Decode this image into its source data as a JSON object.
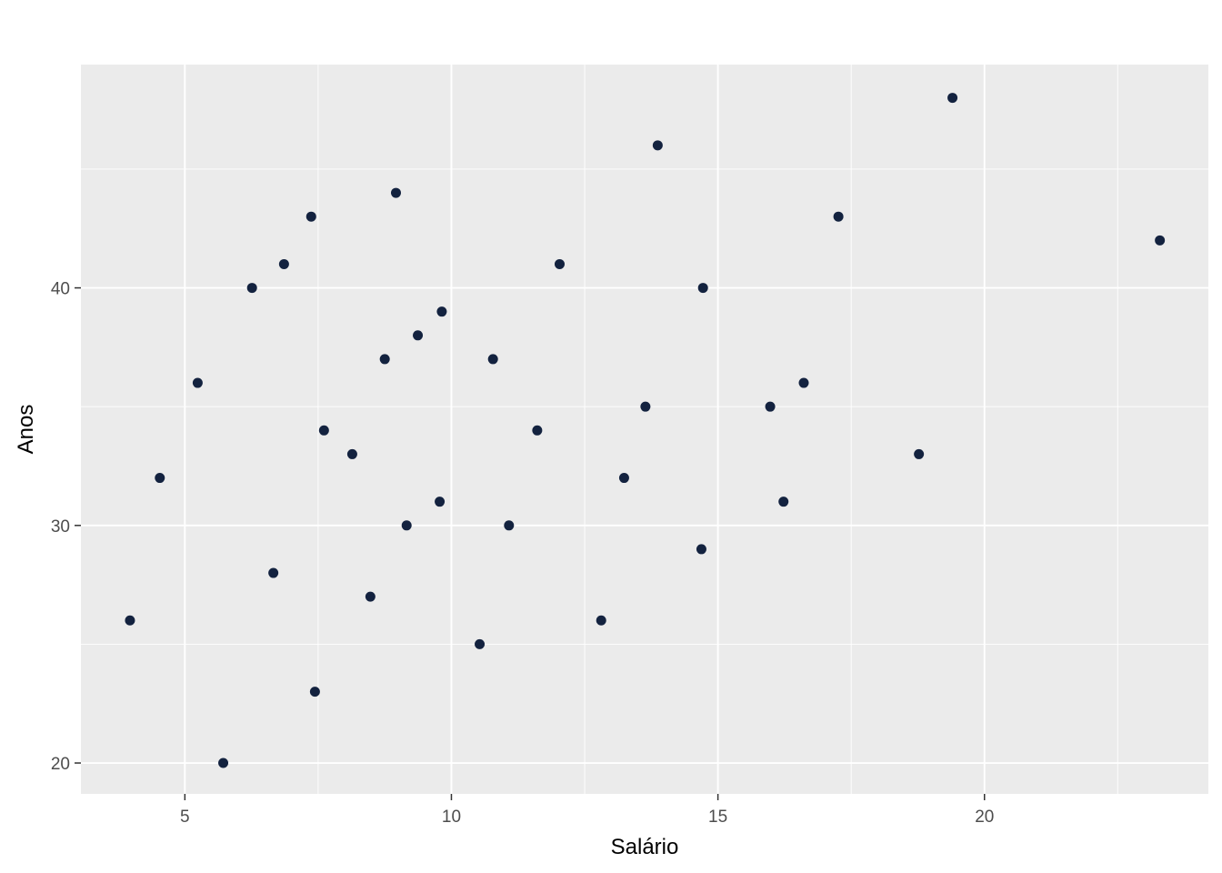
{
  "chart_data": {
    "type": "scatter",
    "title": "",
    "xlabel": "Salário",
    "ylabel": "Anos",
    "xlim": [
      3.05,
      24.2
    ],
    "ylim": [
      18.7,
      49.4
    ],
    "x_ticks": [
      5,
      10,
      15,
      20
    ],
    "y_ticks": [
      20,
      30,
      40
    ],
    "grid": true,
    "legend": "none",
    "colors": {
      "panel": "#ebebeb",
      "grid": "#ffffff",
      "point": "#13223f"
    },
    "points": [
      {
        "x": 3.97,
        "y": 26
      },
      {
        "x": 4.53,
        "y": 32
      },
      {
        "x": 5.24,
        "y": 36
      },
      {
        "x": 5.72,
        "y": 20
      },
      {
        "x": 6.26,
        "y": 40
      },
      {
        "x": 6.66,
        "y": 28
      },
      {
        "x": 6.86,
        "y": 41
      },
      {
        "x": 7.37,
        "y": 43
      },
      {
        "x": 7.44,
        "y": 23
      },
      {
        "x": 7.61,
        "y": 34
      },
      {
        "x": 8.14,
        "y": 33
      },
      {
        "x": 8.48,
        "y": 27
      },
      {
        "x": 8.75,
        "y": 37
      },
      {
        "x": 8.96,
        "y": 44
      },
      {
        "x": 9.16,
        "y": 30
      },
      {
        "x": 9.37,
        "y": 38
      },
      {
        "x": 9.78,
        "y": 31
      },
      {
        "x": 9.82,
        "y": 39
      },
      {
        "x": 10.53,
        "y": 25
      },
      {
        "x": 10.78,
        "y": 37
      },
      {
        "x": 11.08,
        "y": 30
      },
      {
        "x": 11.61,
        "y": 34
      },
      {
        "x": 12.03,
        "y": 41
      },
      {
        "x": 12.81,
        "y": 26
      },
      {
        "x": 13.24,
        "y": 32
      },
      {
        "x": 13.64,
        "y": 35
      },
      {
        "x": 13.87,
        "y": 46
      },
      {
        "x": 14.69,
        "y": 29
      },
      {
        "x": 14.72,
        "y": 40
      },
      {
        "x": 15.98,
        "y": 35
      },
      {
        "x": 16.23,
        "y": 31
      },
      {
        "x": 16.61,
        "y": 36
      },
      {
        "x": 17.26,
        "y": 43
      },
      {
        "x": 18.77,
        "y": 33
      },
      {
        "x": 19.4,
        "y": 48
      },
      {
        "x": 23.29,
        "y": 42
      }
    ]
  }
}
